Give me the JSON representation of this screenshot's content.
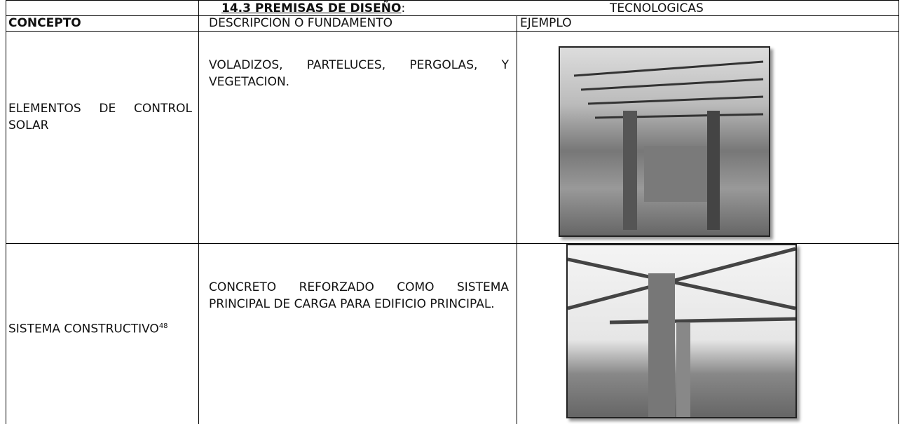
{
  "header": {
    "title": "14.3 PREMISAS DE DISEÑO",
    "separator": ":",
    "category": "TECNOLOGICAS"
  },
  "table": {
    "columns": [
      "CONCEPTO",
      "DESCRIPCION O FUNDAMENTO",
      "EJEMPLO"
    ],
    "rows": [
      {
        "concept": "ELEMENTOS DE CONTROL SOLAR",
        "description": "VOLADIZOS, PARTELUCES, PERGOLAS, Y VEGETACION."
      },
      {
        "concept": "SISTEMA CONSTRUCTIVO",
        "footnote": "48",
        "description": "CONCRETO REFORZADO COMO SISTEMA PRINCIPAL DE CARGA PARA EDIFICIO PRINCIPAL."
      }
    ]
  }
}
